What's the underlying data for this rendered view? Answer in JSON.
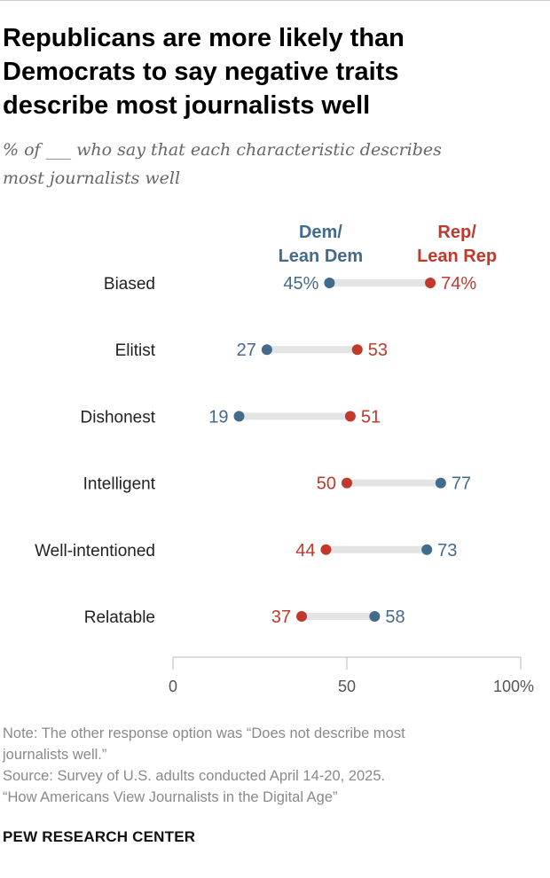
{
  "title": "Republicans are more likely than Democrats to say negative traits describe most journalists well",
  "title_lines": [
    "Republicans are more likely than",
    "Democrats to say negative traits",
    "describe most journalists well"
  ],
  "subtitle_lines": [
    "% of ___ who say that each characteristic describes",
    "most journalists well"
  ],
  "notes": [
    "Note: The other response option was “Does not describe most",
    "journalists well.”",
    "Source: Survey of U.S. adults conducted April 14-20, 2025.",
    "“How Americans View Journalists in the Digital Age”"
  ],
  "brand": "PEW RESEARCH CENTER",
  "colors": {
    "dem": "#436b8c",
    "rep": "#c0392b",
    "bar": "#e3e4e6"
  },
  "chart_data": {
    "type": "dot",
    "categories": [
      "Biased",
      "Elitist",
      "Dishonest",
      "Intelligent",
      "Well-intentioned",
      "Relatable"
    ],
    "series": [
      {
        "name": "Dem/ Lean Dem",
        "label_lines": [
          "Dem/",
          "Lean Dem"
        ],
        "values": [
          45,
          27,
          19,
          77,
          73,
          58
        ]
      },
      {
        "name": "Rep/ Lean Rep",
        "label_lines": [
          "Rep/",
          "Lean Rep"
        ],
        "values": [
          74,
          53,
          51,
          50,
          44,
          37
        ]
      }
    ],
    "xlim": [
      0,
      100
    ],
    "xticks": [
      "0",
      "50",
      "100%"
    ],
    "xtick_values": [
      0,
      50,
      100
    ]
  }
}
